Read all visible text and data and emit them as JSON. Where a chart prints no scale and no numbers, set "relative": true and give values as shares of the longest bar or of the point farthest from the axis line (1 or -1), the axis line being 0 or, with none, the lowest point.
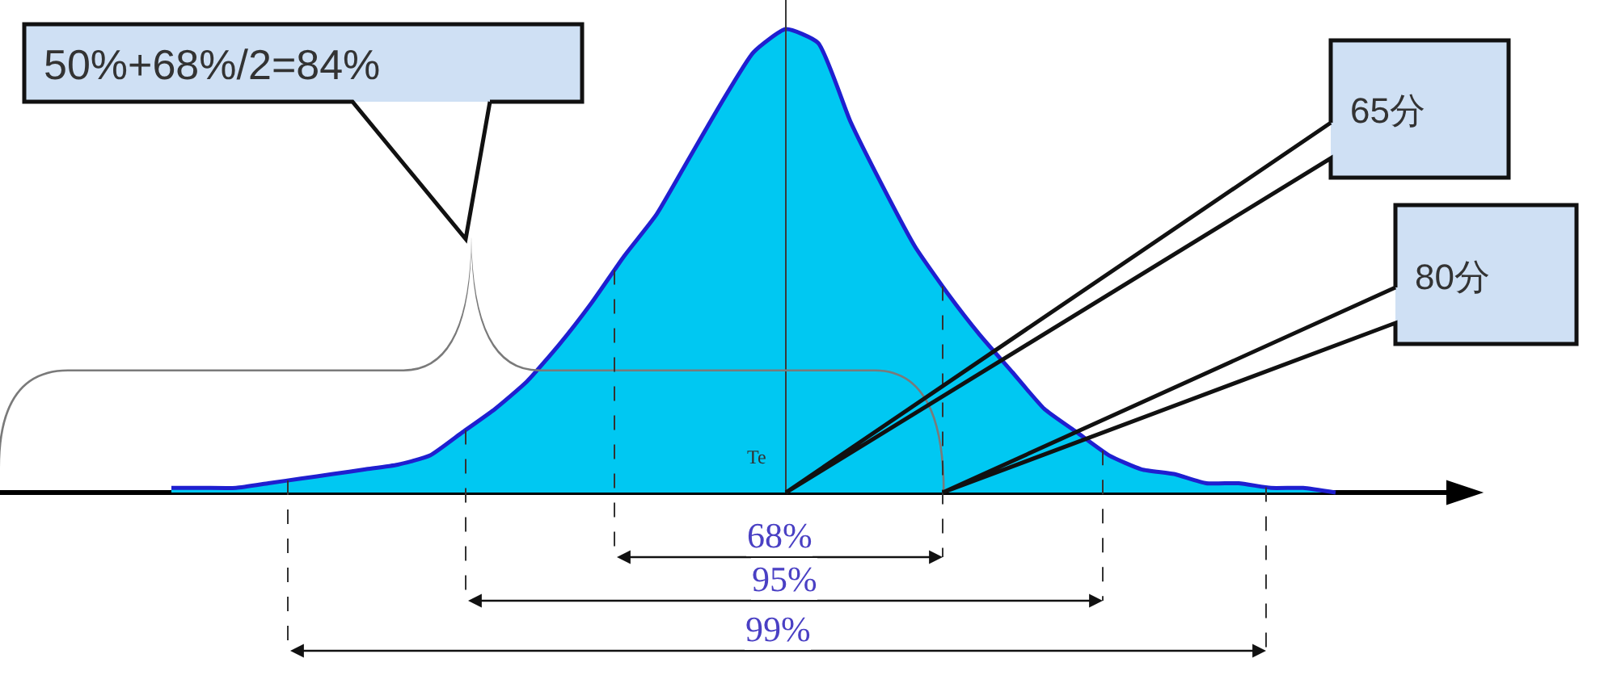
{
  "chart_data": {
    "type": "area",
    "relative": true,
    "legend": false,
    "categories": [
      null,
      null,
      null,
      null,
      null,
      null,
      null,
      null,
      null,
      null,
      null,
      null,
      null,
      null,
      null,
      null,
      null,
      null,
      null,
      null,
      null,
      null,
      null,
      null,
      null,
      null,
      null,
      null,
      null,
      null,
      null,
      null,
      null,
      null,
      null,
      null,
      null
    ],
    "color": "#00c8f2",
    "values": [
      0.01,
      0.01,
      0.01,
      0.02,
      0.03,
      0.04,
      0.05,
      0.06,
      0.08,
      0.13,
      0.18,
      0.24,
      0.32,
      0.41,
      0.51,
      0.6,
      0.72,
      0.84,
      0.95,
      1.0,
      0.97,
      0.8,
      0.66,
      0.53,
      0.43,
      0.34,
      0.26,
      0.18,
      0.13,
      0.08,
      0.05,
      0.04,
      0.02,
      0.02,
      0.01,
      0.01,
      0.0
    ],
    "annotations": [
      "50%+68%/2=84%",
      "65分",
      "80分",
      "Te",
      "68%",
      "95%",
      "99%"
    ]
  }
}
